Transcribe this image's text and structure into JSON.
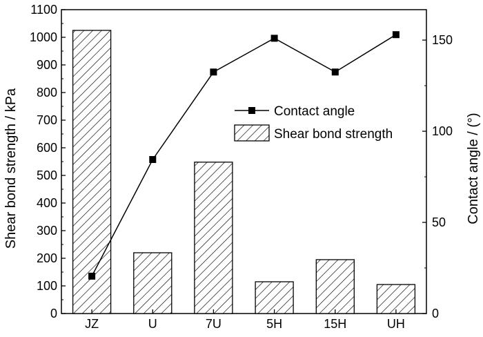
{
  "chart_data": {
    "type": "bar",
    "categories": [
      "JZ",
      "U",
      "7U",
      "5H",
      "15H",
      "UH"
    ],
    "series": [
      {
        "name": "Shear bond strength",
        "type": "bar",
        "axis": "left",
        "values": [
          1025,
          220,
          548,
          115,
          195,
          105
        ]
      },
      {
        "name": "Contact angle",
        "type": "line",
        "axis": "right",
        "values": [
          20.5,
          84.5,
          132.5,
          151,
          132.5,
          153
        ]
      }
    ],
    "ylabel": "Shear bond strength / kPa",
    "ylabel_right": "Contact angle / (°)",
    "ylim": [
      0,
      1100
    ],
    "ylim_right": [
      0,
      166.7
    ],
    "yticks": [
      "0",
      "100",
      "200",
      "300",
      "400",
      "500",
      "600",
      "700",
      "800",
      "900",
      "1000",
      "1100"
    ],
    "yticks_right": [
      "0",
      "50",
      "100",
      "150"
    ],
    "legend": {
      "placement": "center-right",
      "entries": [
        "Contact angle",
        "Shear bond strength"
      ]
    },
    "grid": false,
    "colors": {
      "line": "#000000",
      "bar_stroke": "#000000",
      "bar_hatch": "#000000"
    }
  }
}
